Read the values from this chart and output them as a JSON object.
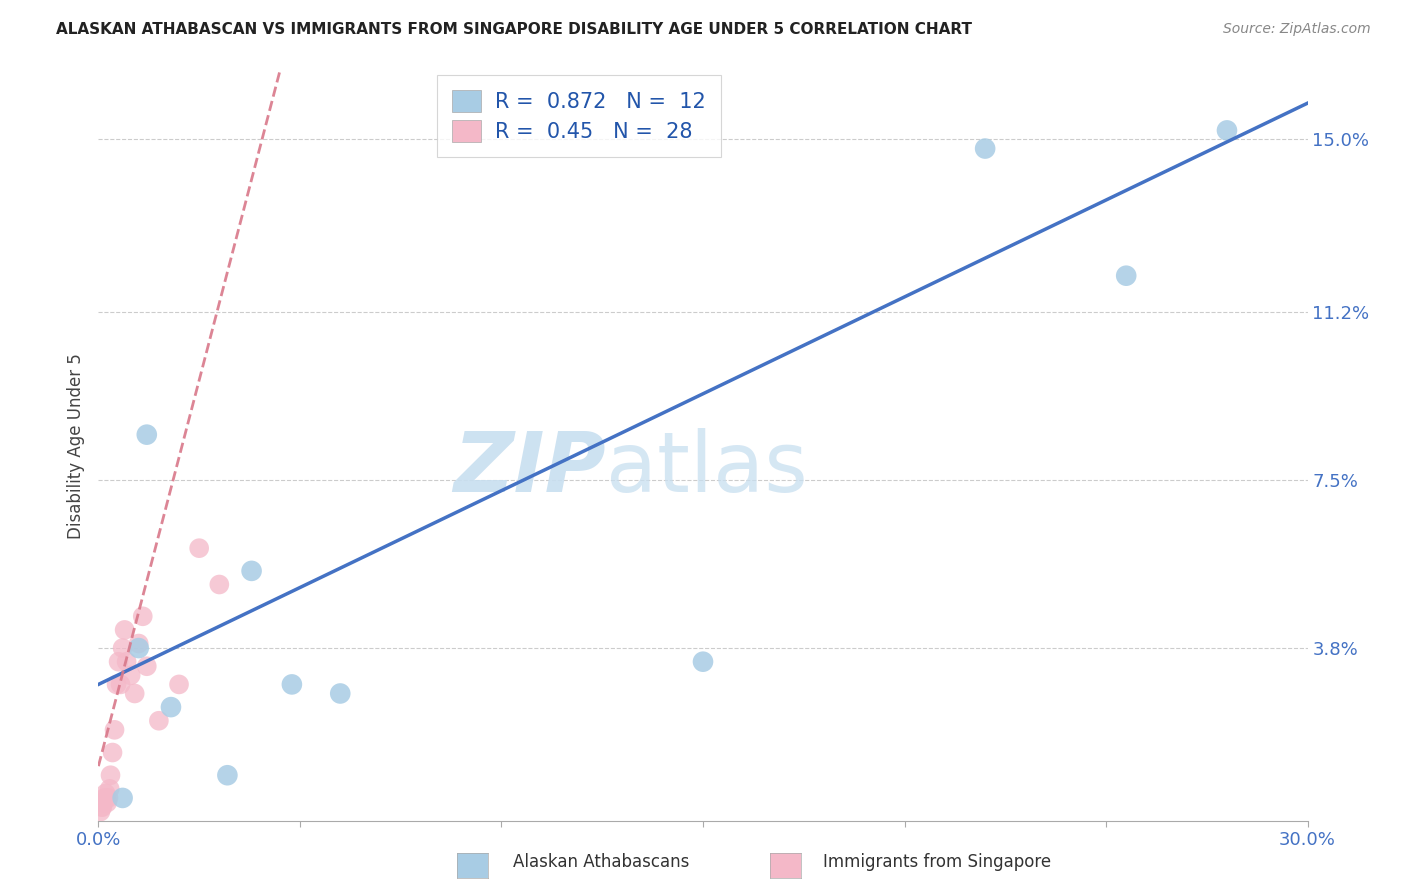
{
  "title": "ALASKAN ATHABASCAN VS IMMIGRANTS FROM SINGAPORE DISABILITY AGE UNDER 5 CORRELATION CHART",
  "source": "Source: ZipAtlas.com",
  "ylabel": "Disability Age Under 5",
  "ytick_labels": [
    "3.8%",
    "7.5%",
    "11.2%",
    "15.0%"
  ],
  "ytick_values": [
    3.8,
    7.5,
    11.2,
    15.0
  ],
  "xmin": 0.0,
  "xmax": 30.0,
  "ymin": 0.0,
  "ymax": 16.5,
  "blue_R": 0.872,
  "blue_N": 12,
  "pink_R": 0.45,
  "pink_N": 28,
  "blue_color": "#a8cce4",
  "pink_color": "#f4b8c8",
  "blue_line_color": "#4472c4",
  "pink_line_color": "#d9788a",
  "legend_label_blue": "Alaskan Athabascans",
  "legend_label_pink": "Immigrants from Singapore",
  "watermark_zip": "ZIP",
  "watermark_atlas": "atlas",
  "blue_line_x0": 0.0,
  "blue_line_y0": 3.0,
  "blue_line_x1": 30.0,
  "blue_line_y1": 15.8,
  "pink_line_x0": 0.0,
  "pink_line_y0": 1.2,
  "pink_line_x1": 4.5,
  "pink_line_y1": 16.5,
  "blue_scatter_x": [
    1.2,
    3.8,
    1.0,
    4.8,
    15.0,
    22.0,
    28.0,
    25.5,
    0.6,
    3.2,
    6.0,
    1.8
  ],
  "blue_scatter_y": [
    8.5,
    5.5,
    3.8,
    3.0,
    3.5,
    14.8,
    15.2,
    12.0,
    0.5,
    1.0,
    2.8,
    2.5
  ],
  "pink_scatter_x": [
    0.05,
    0.08,
    0.1,
    0.12,
    0.15,
    0.18,
    0.2,
    0.22,
    0.25,
    0.28,
    0.3,
    0.35,
    0.4,
    0.45,
    0.5,
    0.55,
    0.6,
    0.65,
    0.7,
    0.8,
    0.9,
    1.0,
    1.1,
    1.2,
    1.5,
    2.0,
    2.5,
    3.0
  ],
  "pink_scatter_y": [
    0.2,
    0.3,
    0.3,
    0.4,
    0.5,
    0.6,
    0.5,
    0.4,
    0.5,
    0.7,
    1.0,
    1.5,
    2.0,
    3.0,
    3.5,
    3.0,
    3.8,
    4.2,
    3.5,
    3.2,
    2.8,
    3.9,
    4.5,
    3.4,
    2.2,
    3.0,
    6.0,
    5.2
  ]
}
